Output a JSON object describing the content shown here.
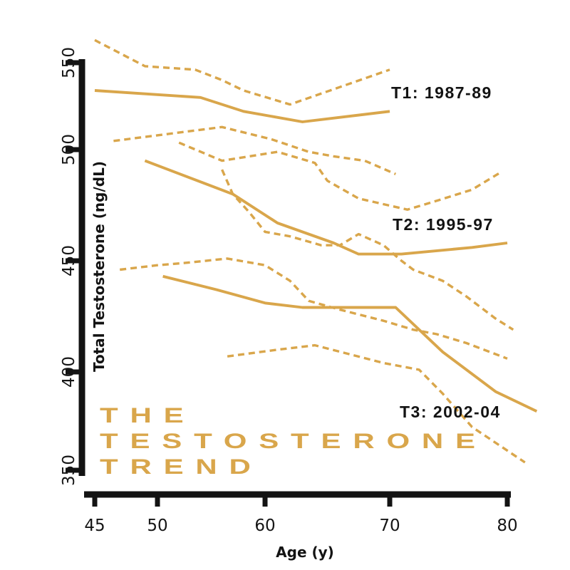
{
  "title": {
    "lines": [
      "THE",
      "TESTOSTERONE",
      "TREND"
    ]
  },
  "colors": {
    "accent": "#D9A64B",
    "ink": "#131313",
    "background": "#FFFFFF"
  },
  "chart_data": {
    "type": "line",
    "title": "The Testosterone Trend",
    "xlabel": "Age (y)",
    "ylabel": "Total Testosterone (ng/dL)",
    "x_ticks": [
      45,
      50,
      60,
      70,
      80
    ],
    "y_ticks": [
      350,
      400,
      450,
      500,
      550
    ],
    "xlim": [
      44,
      83
    ],
    "ylim": [
      345,
      570
    ],
    "grid": false,
    "legend_position": "inline-annotations",
    "series": [
      {
        "name": "T1 1987-89 mean",
        "group": "T1: 1987-89",
        "role": "mean",
        "style": "solid",
        "x": [
          45,
          54,
          58,
          63,
          70
        ],
        "y": [
          534,
          530,
          522,
          516,
          522
        ]
      },
      {
        "name": "T1 1987-89 upper CI",
        "group": "T1: 1987-89",
        "role": "upper-ci",
        "style": "dashed",
        "x": [
          45,
          49,
          53.5,
          56,
          58,
          62,
          66,
          70
        ],
        "y": [
          563,
          548,
          546,
          540,
          534,
          526,
          536,
          546
        ]
      },
      {
        "name": "T1 1987-89 lower CI",
        "group": "T1: 1987-89",
        "role": "lower-ci",
        "style": "dashed",
        "x": [
          46.5,
          56,
          60.5,
          63.5,
          65.5,
          68,
          70.5
        ],
        "y": [
          505,
          513,
          506,
          499,
          497,
          495,
          489
        ]
      },
      {
        "name": "T2 1995-97 mean",
        "group": "T2: 1995-97",
        "role": "mean",
        "style": "solid",
        "x": [
          49,
          57,
          61,
          65.5,
          67.5,
          71,
          77,
          80
        ],
        "y": [
          495,
          480,
          467,
          458,
          453,
          453,
          456,
          458
        ]
      },
      {
        "name": "T2 1995-97 upper CI",
        "group": "T2: 1995-97",
        "role": "upper-ci",
        "style": "dashed",
        "x": [
          52,
          56,
          61,
          64,
          65,
          67.5,
          71.5,
          74,
          77,
          79.5
        ],
        "y": [
          504,
          495,
          499,
          494,
          486,
          478,
          473,
          477,
          482,
          490
        ]
      },
      {
        "name": "T2 1995-97 lower CI",
        "group": "T2: 1995-97",
        "role": "lower-ci",
        "style": "dashed",
        "x": [
          56,
          57,
          58.5,
          60,
          62,
          64.5,
          66,
          67.5,
          69.5,
          71,
          72,
          74.5,
          76.5,
          79,
          80.5
        ],
        "y": [
          491,
          480,
          472,
          463,
          461,
          457,
          457,
          462,
          457,
          450,
          446,
          441,
          434,
          424,
          419
        ]
      },
      {
        "name": "T3 2002-04 mean",
        "group": "T3: 2002-04",
        "role": "mean",
        "style": "solid",
        "x": [
          50.5,
          55.5,
          60,
          63,
          70.5,
          74.5,
          79,
          82.5
        ],
        "y": [
          443,
          437,
          431,
          429,
          429,
          409,
          390,
          380
        ]
      },
      {
        "name": "T3 2002-04 upper CI",
        "group": "T3: 2002-04",
        "role": "upper-ci",
        "style": "dashed",
        "x": [
          47,
          50,
          52.5,
          56.5,
          60,
          62,
          63.5,
          66,
          69.5,
          72,
          74,
          76.5,
          78.5,
          80
        ],
        "y": [
          446,
          448,
          449,
          451,
          448,
          441,
          432,
          428,
          423,
          419,
          417,
          413,
          409,
          406
        ]
      },
      {
        "name": "T3 2002-04 lower CI",
        "group": "T3: 2002-04",
        "role": "lower-ci",
        "style": "dashed",
        "x": [
          56.5,
          61,
          64,
          69.5,
          72.5,
          74.5,
          77,
          79.5,
          81.5
        ],
        "y": [
          407,
          410,
          412,
          404,
          401,
          389,
          372,
          362,
          354
        ]
      }
    ],
    "annotations": [
      {
        "text": "T1: 1987-89",
        "age": 70.2,
        "value": 532
      },
      {
        "text": "T2: 1995-97",
        "age": 70.3,
        "value": 467
      },
      {
        "text": "T3: 2002-04",
        "age": 71.0,
        "value": 380
      }
    ]
  }
}
